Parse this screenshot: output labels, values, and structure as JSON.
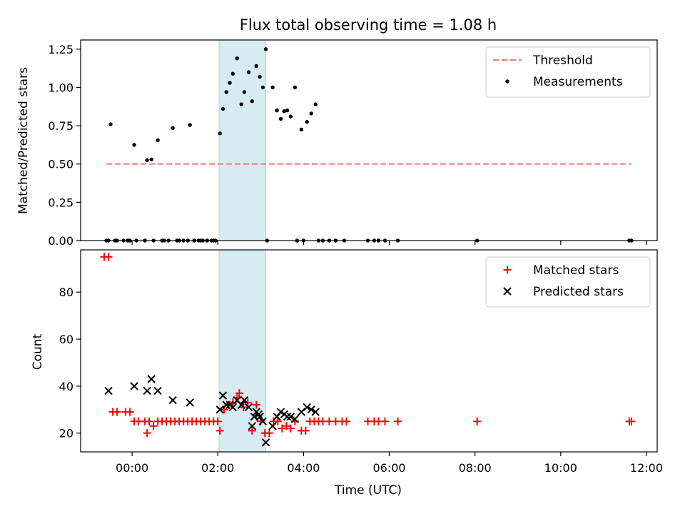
{
  "chart_data": [
    {
      "type": "scatter",
      "title": "Flux total observing time = 1.08 h",
      "ylabel": "Matched/Predicted stars",
      "xlabel": "",
      "x_unit": "hours (UTC)",
      "xlim": [
        -1.2,
        12.25
      ],
      "ylim": [
        0,
        1.31
      ],
      "yticks": [
        0,
        0.25,
        0.5,
        0.75,
        1.0,
        1.25
      ],
      "ytick_labels": [
        "0.00",
        "0.25",
        "0.50",
        "0.75",
        "1.00",
        "1.25"
      ],
      "xticks": [
        0,
        2,
        4,
        6,
        8,
        10,
        12
      ],
      "shaded_span": [
        2.03,
        3.12
      ],
      "legend_position": "upper right",
      "series": [
        {
          "name": "Threshold",
          "kind": "dashed-line",
          "color": "#ff7777",
          "x": [
            -0.6,
            11.65
          ],
          "y": [
            0.5,
            0.5
          ]
        },
        {
          "name": "Measurements",
          "kind": "dots",
          "color": "#000000",
          "x": [
            -0.6,
            -0.5,
            -0.35,
            -0.2,
            -0.1,
            0.05,
            0.35,
            0.45,
            0.6,
            0.75,
            0.95,
            1.1,
            1.2,
            1.3,
            1.35,
            1.45,
            1.55,
            1.65,
            1.75,
            1.85,
            1.95,
            2.05,
            2.12,
            2.2,
            2.28,
            2.35,
            2.45,
            2.55,
            2.62,
            2.72,
            2.8,
            2.9,
            2.98,
            3.05,
            3.12,
            3.28,
            3.38,
            3.47,
            3.55,
            3.62,
            3.7,
            3.8,
            3.95,
            4.08,
            4.18,
            4.28,
            -0.55,
            -0.4,
            -0.1,
            -0.05,
            0.1,
            0.3,
            0.5,
            0.7,
            0.85,
            1.05,
            1.2,
            1.3,
            1.45,
            1.6,
            1.75,
            1.9,
            3.15,
            3.85,
            4.0,
            4.35,
            4.45,
            4.6,
            4.75,
            4.95,
            5.5,
            5.65,
            5.75,
            5.9,
            6.2,
            8.05,
            11.6,
            11.65
          ],
          "y": [
            0.0,
            0.76,
            0.0,
            0.0,
            0.0,
            0.625,
            0.525,
            0.53,
            0.655,
            0.0,
            0.735,
            0.0,
            0.0,
            0.0,
            0.755,
            0.0,
            0.0,
            0.0,
            0.0,
            0.0,
            0.0,
            0.7,
            0.86,
            0.97,
            1.03,
            1.09,
            1.19,
            0.89,
            0.97,
            1.1,
            0.91,
            1.14,
            1.07,
            1.0,
            1.25,
            1.0,
            0.85,
            0.795,
            0.845,
            0.85,
            0.81,
            1.0,
            0.725,
            0.775,
            0.83,
            0.89,
            0.0,
            0.0,
            0.0,
            0.0,
            0.0,
            0.0,
            0.0,
            0.0,
            0.0,
            0.0,
            0.0,
            0.0,
            0.0,
            0.0,
            0.0,
            0.0,
            0.0,
            0.0,
            0.0,
            0.0,
            0.0,
            0.0,
            0.0,
            0.0,
            0.0,
            0.0,
            0.0,
            0.0,
            0.0,
            0.0,
            0.0,
            0.0
          ]
        }
      ]
    },
    {
      "type": "scatter",
      "title": "",
      "ylabel": "Count",
      "xlabel": "Time (UTC)",
      "x_unit": "hours (UTC)",
      "xlim": [
        -1.2,
        12.25
      ],
      "ylim": [
        12,
        98
      ],
      "yticks": [
        20,
        40,
        60,
        80
      ],
      "ytick_labels": [
        "20",
        "40",
        "60",
        "80"
      ],
      "xticks": [
        0,
        2,
        4,
        6,
        8,
        10,
        12
      ],
      "xtick_labels": [
        "00:00",
        "02:00",
        "04:00",
        "06:00",
        "08:00",
        "10:00",
        "12:00"
      ],
      "shaded_span": [
        2.03,
        3.12
      ],
      "legend_position": "upper right",
      "series": [
        {
          "name": "Matched stars",
          "marker": "plus",
          "color": "#ff0000",
          "x": [
            -0.65,
            -0.55,
            -0.45,
            -0.35,
            -0.15,
            -0.05,
            0.05,
            0.15,
            0.3,
            0.35,
            0.4,
            0.5,
            0.6,
            0.7,
            0.8,
            0.9,
            1.0,
            1.1,
            1.2,
            1.3,
            1.4,
            1.5,
            1.6,
            1.7,
            1.8,
            1.9,
            2.0,
            2.05,
            2.15,
            2.25,
            2.35,
            2.45,
            2.5,
            2.6,
            2.7,
            2.8,
            2.9,
            3.0,
            3.1,
            3.2,
            3.3,
            3.4,
            3.5,
            3.6,
            3.7,
            3.8,
            3.95,
            4.05,
            4.15,
            4.25,
            4.35,
            4.45,
            4.6,
            4.75,
            4.9,
            5.0,
            5.5,
            5.65,
            5.75,
            5.9,
            6.2,
            8.05,
            11.6,
            11.65
          ],
          "y": [
            95,
            95,
            29,
            29,
            29,
            29,
            25,
            25,
            25,
            20,
            25,
            23,
            25,
            25,
            25,
            25,
            25,
            25,
            25,
            25,
            25,
            25,
            25,
            25,
            25,
            25,
            25,
            21,
            30,
            32,
            33,
            35,
            37,
            31,
            33,
            21,
            32,
            25,
            20,
            20,
            25,
            25,
            22,
            23,
            22,
            25,
            21,
            21,
            25,
            25,
            25,
            25,
            25,
            25,
            25,
            25,
            25,
            25,
            25,
            25,
            25,
            25,
            25,
            25
          ]
        },
        {
          "name": "Predicted stars",
          "marker": "x",
          "color": "#000000",
          "x": [
            -0.55,
            0.05,
            0.35,
            0.45,
            0.6,
            0.95,
            1.35,
            2.05,
            2.12,
            2.2,
            2.28,
            2.35,
            2.45,
            2.55,
            2.62,
            2.72,
            2.8,
            2.9,
            2.98,
            3.05,
            3.12,
            3.28,
            3.38,
            3.47,
            3.55,
            3.62,
            3.7,
            3.8,
            3.95,
            4.08,
            4.18,
            4.28,
            2.85,
            2.95
          ],
          "y": [
            38,
            40,
            38,
            43,
            38,
            34,
            33,
            30,
            36,
            32,
            32,
            31,
            34,
            32,
            34,
            31,
            23,
            29,
            27,
            25,
            16,
            23,
            27,
            29,
            28,
            27,
            27,
            26,
            29,
            31,
            30,
            29,
            27,
            28
          ]
        }
      ]
    }
  ]
}
